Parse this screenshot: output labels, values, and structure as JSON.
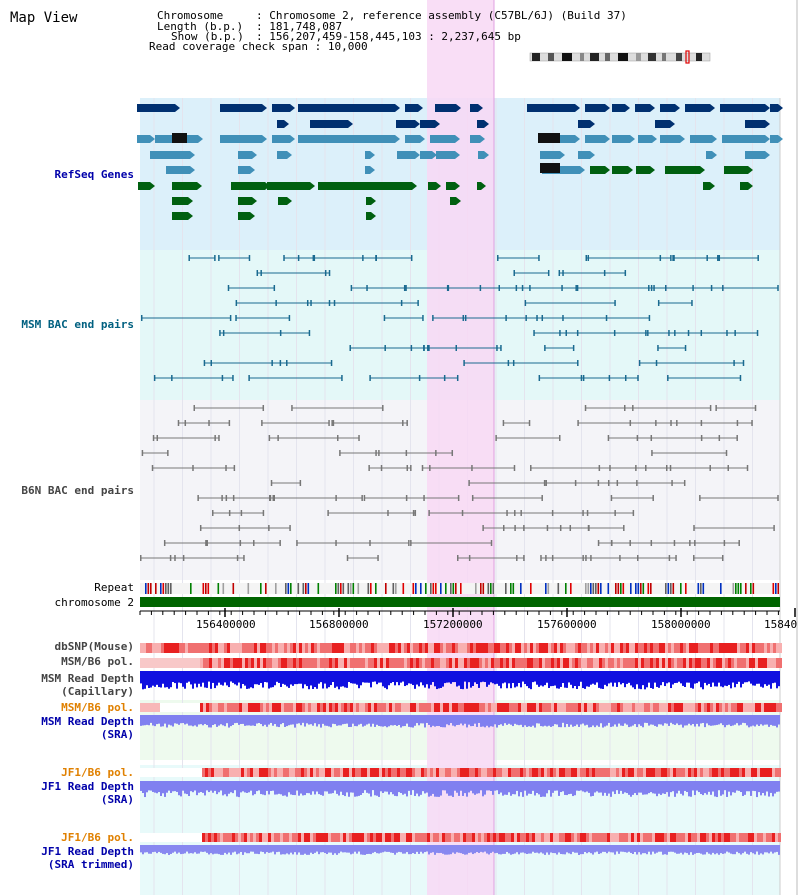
{
  "title": "Map View",
  "info": {
    "chromosome_key": "Chromosome",
    "chromosome_val": "Chromosome 2, reference assembly (C57BL/6J) (Build 37)",
    "length_key": "Length (b.p.)",
    "length_val": "181,748,087",
    "show_key": "Show (b.p.)",
    "show_val": "156,207,459-158,445,103 : 2,237,645 bp",
    "span_key": "Read coverage check span",
    "span_val": "10,000"
  },
  "tracks": {
    "refseq": "RefSeq Genes",
    "msm_bac": "MSM BAC end pairs",
    "b6n_bac": "B6N BAC end pairs",
    "repeat": "Repeat",
    "chromosome": "chromosome 2",
    "dbsnp": "dbSNP(Mouse)",
    "msm_b6_pol_1": "MSM/B6 pol.",
    "msm_depth_cap_1": "MSM Read Depth",
    "msm_depth_cap_2": "(Capillary)",
    "msm_b6_pol_2": "MSM/B6 pol.",
    "msm_depth_sra_1": "MSM Read Depth",
    "msm_depth_sra_2": "(SRA)",
    "jf1_b6_pol_1": "JF1/B6 pol.",
    "jf1_depth_sra_1": "JF1 Read Depth",
    "jf1_depth_sra_2": "(SRA)",
    "jf1_b6_pol_2": "JF1/B6 pol.",
    "jf1_depth_trim_1": "JF1 Read Depth",
    "jf1_depth_trim_2": "(SRA trimmed)"
  },
  "axis_ticks": [
    "156400000",
    "156800000",
    "157200000",
    "157600000",
    "158000000",
    "15840"
  ],
  "colors": {
    "refseq_label": "#0000aa",
    "msm_label": "#006080",
    "b6n_label": "#444444",
    "pol_label": "#e08000",
    "depth_label": "#0000aa",
    "highlight": "#f8d8f4"
  }
}
